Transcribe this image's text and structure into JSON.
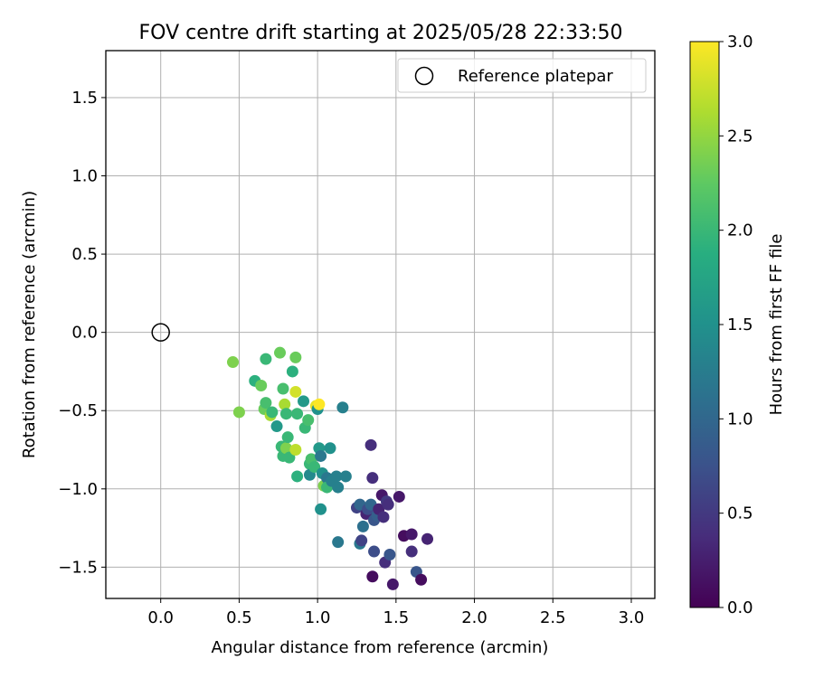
{
  "chart_data": {
    "type": "scatter",
    "title": "FOV centre drift starting at 2025/05/28 22:33:50",
    "xlabel": "Angular distance from reference (arcmin)",
    "ylabel": "Rotation from reference (arcmin)",
    "xlim": [
      -0.35,
      3.15
    ],
    "ylim": [
      -1.7,
      1.8
    ],
    "x_ticks": [
      0.0,
      0.5,
      1.0,
      1.5,
      2.0,
      2.5,
      3.0
    ],
    "x_tick_labels": [
      "0.0",
      "0.5",
      "1.0",
      "1.5",
      "2.0",
      "2.5",
      "3.0"
    ],
    "y_ticks": [
      -1.5,
      -1.0,
      -0.5,
      0.0,
      0.5,
      1.0,
      1.5
    ],
    "y_tick_labels": [
      "−1.5",
      "−1.0",
      "−0.5",
      "0.0",
      "0.5",
      "1.0",
      "1.5"
    ],
    "grid": true,
    "legend": {
      "placement": "top-right",
      "label": "Reference platepar"
    },
    "reference_point": {
      "x": 0.0,
      "y": 0.0
    },
    "colorbar": {
      "label": "Hours from first FF file",
      "colormap": "viridis",
      "range": [
        0.0,
        3.0
      ],
      "ticks": [
        0.0,
        0.5,
        1.0,
        1.5,
        2.0,
        2.5,
        3.0
      ],
      "tick_labels": [
        "0.0",
        "0.5",
        "1.0",
        "1.5",
        "2.0",
        "2.5",
        "3.0"
      ]
    },
    "series": [
      {
        "points": [
          {
            "x": 0.46,
            "y": -0.19,
            "c": 2.4
          },
          {
            "x": 0.5,
            "y": -0.51,
            "c": 2.4
          },
          {
            "x": 0.6,
            "y": -0.31,
            "c": 1.9
          },
          {
            "x": 0.64,
            "y": -0.34,
            "c": 2.3
          },
          {
            "x": 0.66,
            "y": -0.49,
            "c": 2.3
          },
          {
            "x": 0.67,
            "y": -0.17,
            "c": 2.0
          },
          {
            "x": 0.67,
            "y": -0.45,
            "c": 2.1
          },
          {
            "x": 0.7,
            "y": -0.53,
            "c": 2.6
          },
          {
            "x": 0.71,
            "y": -0.51,
            "c": 2.0
          },
          {
            "x": 0.74,
            "y": -0.6,
            "c": 1.6
          },
          {
            "x": 0.76,
            "y": -0.13,
            "c": 2.3
          },
          {
            "x": 0.77,
            "y": -0.73,
            "c": 2.0
          },
          {
            "x": 0.78,
            "y": -0.36,
            "c": 2.1
          },
          {
            "x": 0.78,
            "y": -0.79,
            "c": 2.0
          },
          {
            "x": 0.79,
            "y": -0.46,
            "c": 2.6
          },
          {
            "x": 0.8,
            "y": -0.74,
            "c": 2.4
          },
          {
            "x": 0.8,
            "y": -0.52,
            "c": 2.0
          },
          {
            "x": 0.81,
            "y": -0.67,
            "c": 2.0
          },
          {
            "x": 0.82,
            "y": -0.8,
            "c": 2.0
          },
          {
            "x": 0.84,
            "y": -0.25,
            "c": 1.9
          },
          {
            "x": 0.86,
            "y": -0.16,
            "c": 2.3
          },
          {
            "x": 0.86,
            "y": -0.38,
            "c": 2.8
          },
          {
            "x": 0.86,
            "y": -0.75,
            "c": 2.7
          },
          {
            "x": 0.87,
            "y": -0.52,
            "c": 2.0
          },
          {
            "x": 0.87,
            "y": -0.92,
            "c": 1.9
          },
          {
            "x": 0.91,
            "y": -0.44,
            "c": 1.6
          },
          {
            "x": 0.92,
            "y": -0.61,
            "c": 2.0
          },
          {
            "x": 0.94,
            "y": -0.56,
            "c": 2.1
          },
          {
            "x": 0.95,
            "y": -0.84,
            "c": 2.0
          },
          {
            "x": 0.95,
            "y": -0.91,
            "c": 1.4
          },
          {
            "x": 0.96,
            "y": -0.81,
            "c": 2.1
          },
          {
            "x": 0.98,
            "y": -0.86,
            "c": 2.0
          },
          {
            "x": 0.99,
            "y": -0.47,
            "c": 2.9
          },
          {
            "x": 1.0,
            "y": -0.49,
            "c": 1.5
          },
          {
            "x": 1.01,
            "y": -0.74,
            "c": 1.6
          },
          {
            "x": 1.01,
            "y": -0.46,
            "c": 3.0
          },
          {
            "x": 1.02,
            "y": -0.79,
            "c": 1.2
          },
          {
            "x": 1.02,
            "y": -1.13,
            "c": 1.5
          },
          {
            "x": 1.03,
            "y": -0.9,
            "c": 1.5
          },
          {
            "x": 1.04,
            "y": -0.98,
            "c": 2.4
          },
          {
            "x": 1.06,
            "y": -0.93,
            "c": 1.2
          },
          {
            "x": 1.06,
            "y": -0.99,
            "c": 2.0
          },
          {
            "x": 1.08,
            "y": -0.74,
            "c": 1.5
          },
          {
            "x": 1.09,
            "y": -0.95,
            "c": 1.3
          },
          {
            "x": 1.12,
            "y": -0.92,
            "c": 1.3
          },
          {
            "x": 1.13,
            "y": -0.99,
            "c": 1.3
          },
          {
            "x": 1.13,
            "y": -1.34,
            "c": 1.2
          },
          {
            "x": 1.16,
            "y": -0.48,
            "c": 1.3
          },
          {
            "x": 1.18,
            "y": -0.92,
            "c": 1.3
          },
          {
            "x": 1.25,
            "y": -1.12,
            "c": 0.6
          },
          {
            "x": 1.27,
            "y": -1.1,
            "c": 1.0
          },
          {
            "x": 1.27,
            "y": -1.35,
            "c": 1.2
          },
          {
            "x": 1.28,
            "y": -1.33,
            "c": 0.6
          },
          {
            "x": 1.29,
            "y": -1.24,
            "c": 1.1
          },
          {
            "x": 1.31,
            "y": -1.16,
            "c": 0.3
          },
          {
            "x": 1.32,
            "y": -1.13,
            "c": 0.7
          },
          {
            "x": 1.34,
            "y": -0.72,
            "c": 0.4
          },
          {
            "x": 1.34,
            "y": -1.1,
            "c": 1.0
          },
          {
            "x": 1.35,
            "y": -0.93,
            "c": 0.4
          },
          {
            "x": 1.35,
            "y": -1.56,
            "c": 0.1
          },
          {
            "x": 1.36,
            "y": -1.2,
            "c": 0.8
          },
          {
            "x": 1.36,
            "y": -1.4,
            "c": 0.7
          },
          {
            "x": 1.38,
            "y": -1.17,
            "c": 0.9
          },
          {
            "x": 1.39,
            "y": -1.13,
            "c": 0.3
          },
          {
            "x": 1.41,
            "y": -1.04,
            "c": 0.2
          },
          {
            "x": 1.42,
            "y": -1.18,
            "c": 0.4
          },
          {
            "x": 1.43,
            "y": -1.47,
            "c": 0.4
          },
          {
            "x": 1.44,
            "y": -1.08,
            "c": 0.5
          },
          {
            "x": 1.45,
            "y": -1.1,
            "c": 0.4
          },
          {
            "x": 1.46,
            "y": -1.42,
            "c": 0.8
          },
          {
            "x": 1.48,
            "y": -1.61,
            "c": 0.2
          },
          {
            "x": 1.52,
            "y": -1.05,
            "c": 0.2
          },
          {
            "x": 1.55,
            "y": -1.3,
            "c": 0.1
          },
          {
            "x": 1.6,
            "y": -1.29,
            "c": 0.2
          },
          {
            "x": 1.6,
            "y": -1.4,
            "c": 0.4
          },
          {
            "x": 1.63,
            "y": -1.53,
            "c": 0.8
          },
          {
            "x": 1.66,
            "y": -1.58,
            "c": 0.1
          },
          {
            "x": 1.7,
            "y": -1.32,
            "c": 0.3
          }
        ]
      }
    ]
  }
}
